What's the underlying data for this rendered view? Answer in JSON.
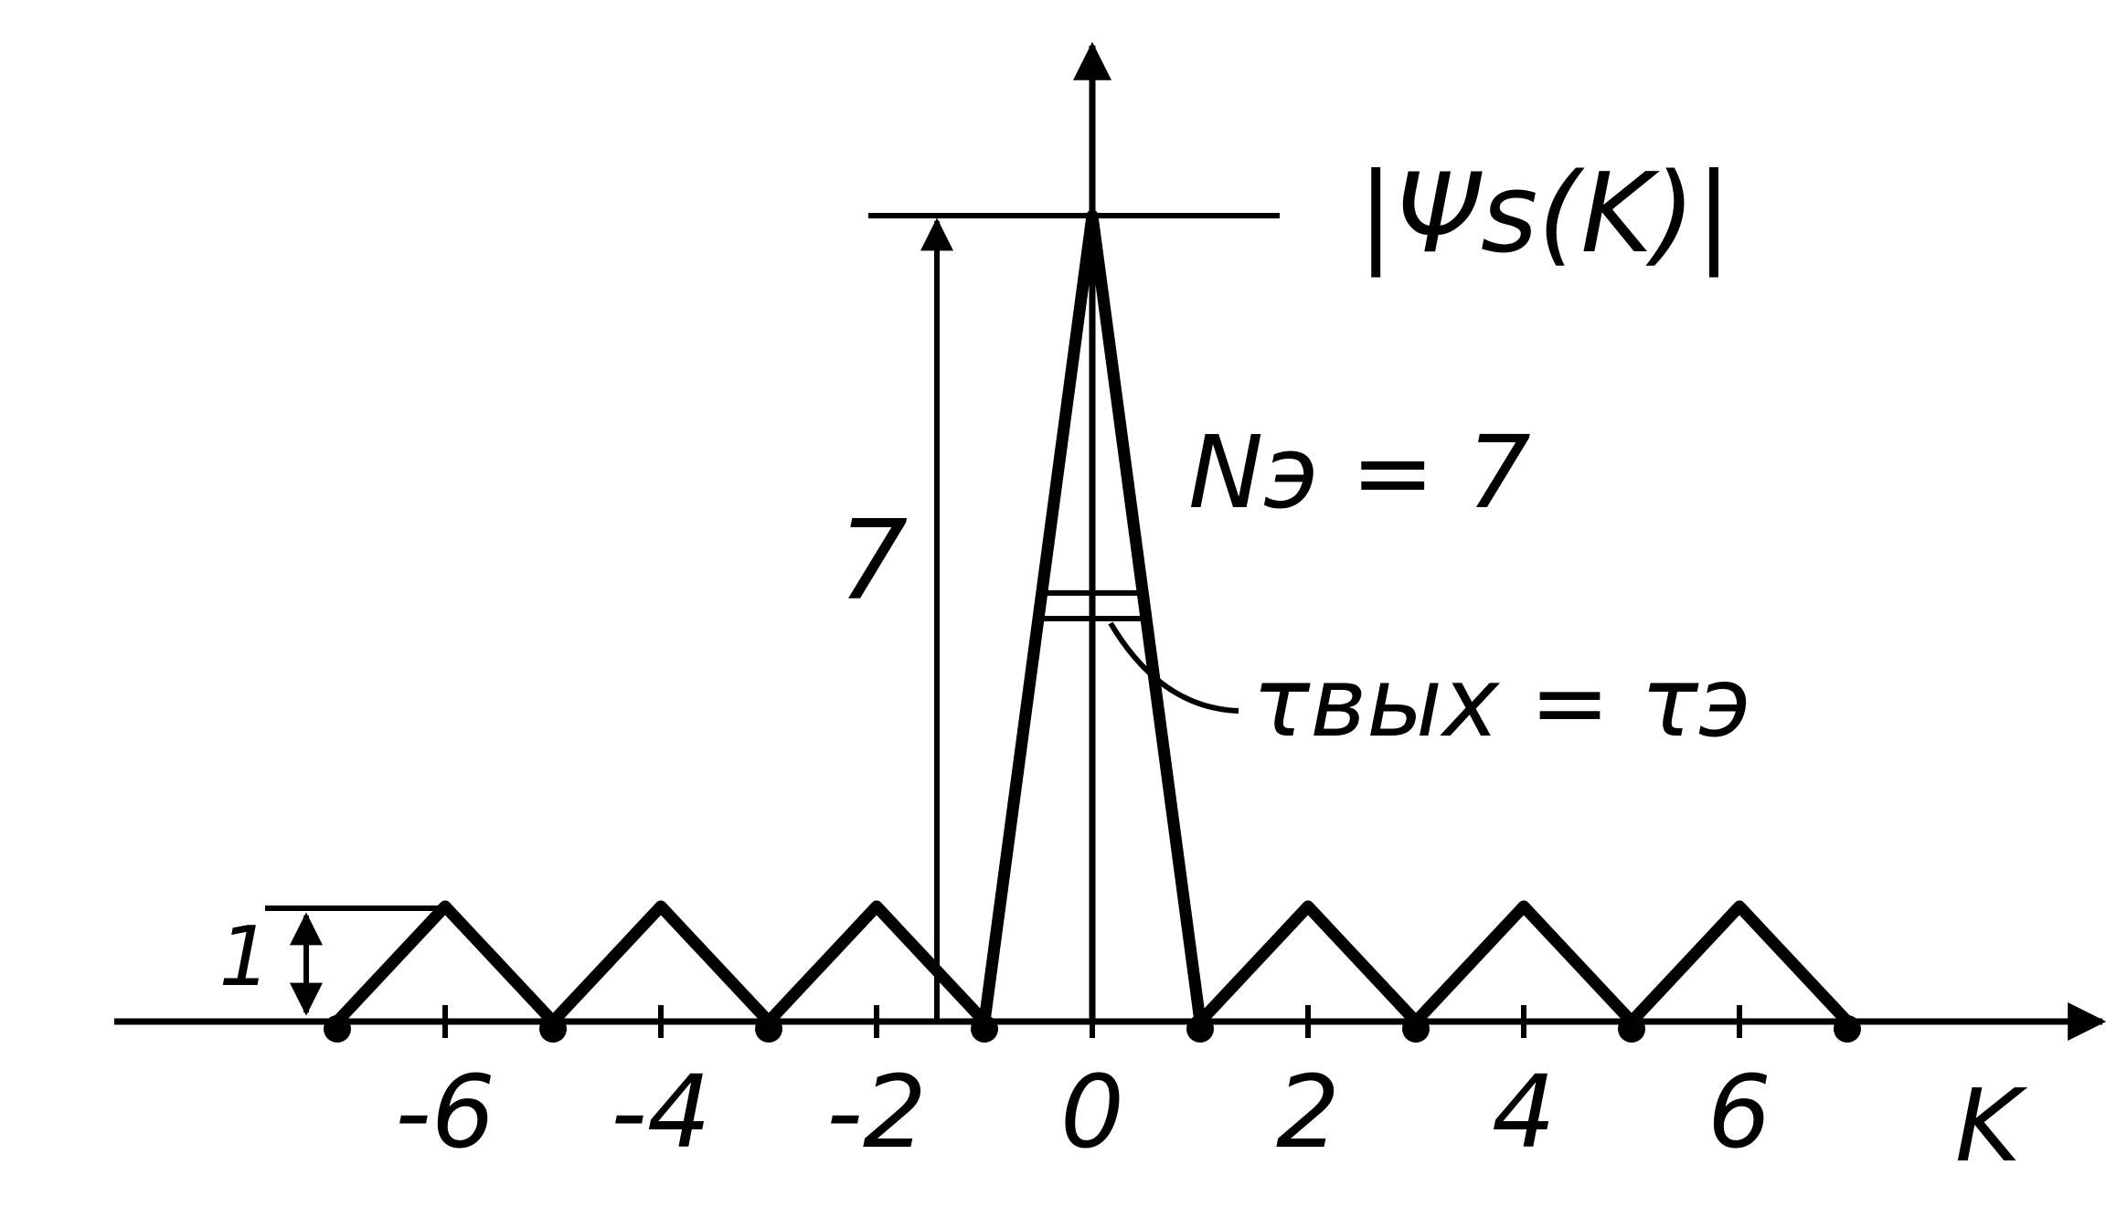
{
  "chart_data": {
    "type": "line",
    "ylabel": "|Ψs(K)|",
    "xlabel": "K",
    "x_ticks": [
      -6,
      -4,
      -2,
      0,
      2,
      4,
      6
    ],
    "x_tick_labels": [
      "-6",
      "-4",
      "-2",
      "0",
      "2",
      "4",
      "6"
    ],
    "xlim": [
      -7,
      7
    ],
    "ylim": [
      0,
      7
    ],
    "series": [
      {
        "x": [
          -7,
          -6,
          -5,
          -4,
          -3,
          -2,
          -1,
          0,
          1,
          2,
          3,
          4,
          5,
          6,
          7
        ],
        "values": [
          0,
          1,
          0,
          1,
          0,
          1,
          0,
          7,
          0,
          1,
          0,
          1,
          0,
          1,
          0
        ]
      }
    ],
    "zero_points_x": [
      -7,
      -5,
      -3,
      -1,
      1,
      3,
      5,
      7
    ],
    "annotations": {
      "peak_value_label": "7",
      "sidelobe_value_label": "1",
      "count_label": "Nэ = 7",
      "width_label": "τвых = τэ",
      "peak_reference_value": 7,
      "sidelobe_reference_value": 1,
      "width_marker_value": 3.5
    },
    "grid": false,
    "legend": "none"
  }
}
